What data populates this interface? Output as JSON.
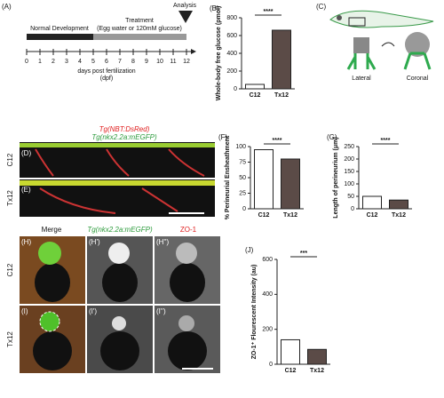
{
  "timeline": {
    "label": "(A)",
    "phase1": "Normal Development",
    "phase2": "Treatment",
    "phase2_note": "(Egg water or 120mM glucose)",
    "analysis": "Analysis",
    "ticks": [
      0,
      1,
      2,
      3,
      4,
      5,
      6,
      7,
      8,
      9,
      10,
      11,
      12
    ],
    "xlabel": "days post fertilization",
    "xunit": "(dpf)"
  },
  "diagram": {
    "label": "(C)",
    "view1": "Lateral",
    "view2": "Coronal"
  },
  "lateral_images": {
    "label_top": "(D)",
    "label_bottom": "(E)",
    "row_top": "C12",
    "row_bottom": "Tx12",
    "transgene_red": "Tg(NBT:DsRed)",
    "transgene_green": "Tg(nkx2.2a:mEGFP)"
  },
  "cross_section_images": {
    "col1": "Merge",
    "col2": "Tg(nkx2.2a:mEGFP)",
    "col3": "ZO-1",
    "row_top": "C12",
    "row_bottom": "Tx12",
    "labels_top": [
      "(H)",
      "(H')",
      "(H'')"
    ],
    "labels_bottom": [
      "(I)",
      "(I')",
      "(I'')"
    ]
  },
  "chart_data": [
    {
      "type": "bar",
      "label": "(B)",
      "ylabel": "Whole-body free glucose (pmol)",
      "categories": [
        "C12",
        "Tx12"
      ],
      "values": [
        50,
        660
      ],
      "colors": [
        "#ffffff",
        "#5b4b47"
      ],
      "ylim": [
        0,
        800
      ],
      "yticks": [
        0,
        200,
        400,
        600,
        800
      ],
      "significance": "****"
    },
    {
      "type": "bar",
      "label": "(F)",
      "ylabel": "% Perineurial Ensheathment",
      "categories": [
        "C12",
        "Tx12"
      ],
      "values": [
        95,
        80
      ],
      "colors": [
        "#ffffff",
        "#5b4b47"
      ],
      "ylim": [
        0,
        100
      ],
      "yticks": [
        0,
        25,
        50,
        75,
        100
      ],
      "significance": "****"
    },
    {
      "type": "bar",
      "label": "(G)",
      "ylabel": "Length of perineurium (μm)",
      "categories": [
        "C12",
        "Tx12"
      ],
      "values": [
        50,
        35
      ],
      "colors": [
        "#ffffff",
        "#5b4b47"
      ],
      "ylim": [
        0,
        250
      ],
      "yticks": [
        0,
        50,
        100,
        150,
        200,
        250
      ],
      "significance": "****"
    },
    {
      "type": "bar",
      "label": "(J)",
      "ylabel": "ZO-1⁺ Flourescent Intensity (au)",
      "categories": [
        "C12",
        "Tx12"
      ],
      "values": [
        140,
        85
      ],
      "colors": [
        "#ffffff",
        "#5b4b47"
      ],
      "ylim": [
        0,
        600
      ],
      "yticks": [
        0,
        200,
        400,
        600
      ],
      "significance": "***"
    }
  ]
}
